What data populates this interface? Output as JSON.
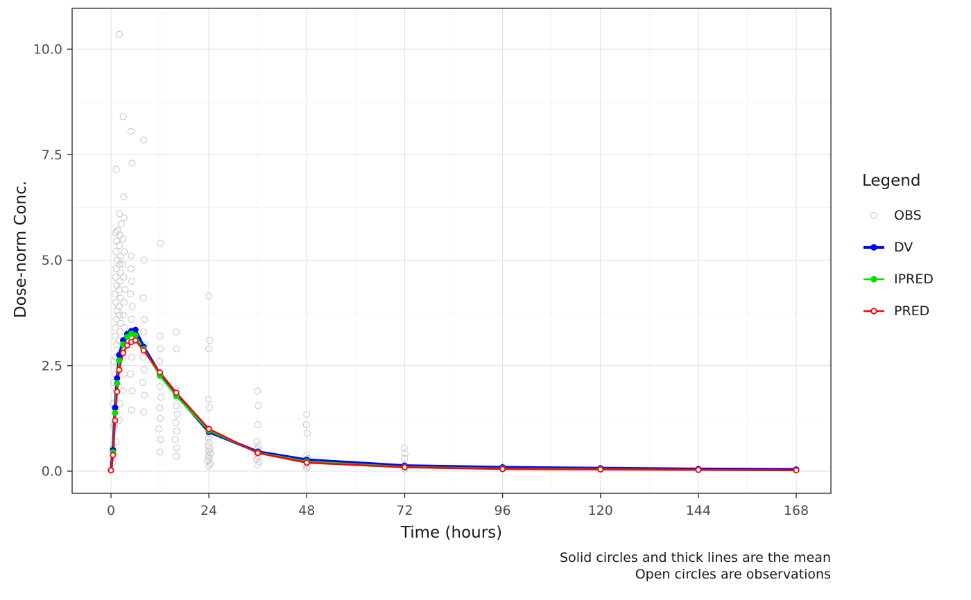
{
  "chart_data": {
    "type": "scatter",
    "title": "",
    "xlabel": "Time (hours)",
    "ylabel": "Dose-norm Conc.",
    "xticks": [
      0,
      24,
      48,
      72,
      96,
      120,
      144,
      168
    ],
    "yticks": [
      "0.0",
      "2.5",
      "5.0",
      "7.5",
      "10.0"
    ],
    "ytick_values": [
      0,
      2.5,
      5,
      7.5,
      10
    ],
    "xlim": [
      -9.4,
      176.5
    ],
    "ylim": [
      -0.53,
      10.97
    ],
    "grid": true,
    "legend_title": "Legend",
    "legend_position": "right",
    "caption": [
      "Solid circles and thick lines are the mean",
      "Open circles are observations"
    ],
    "colors": {
      "obs": "#c9c9c9",
      "dv": "#0000ff",
      "ipred": "#00e000",
      "pred": "#ff0000",
      "tick_label": "#4d4d4d",
      "grid_major": "#e4e4e4",
      "grid_minor": "#f4f4f4",
      "panel_border": "#333333"
    },
    "mean_time": [
      0,
      0.5,
      1,
      1.5,
      2,
      3,
      4,
      5,
      6,
      8,
      12,
      16,
      24,
      36,
      48,
      72,
      96,
      120,
      144,
      168
    ],
    "series": [
      {
        "name": "OBS",
        "type": "scatter",
        "marker": "open-circle",
        "color_key": "obs"
      },
      {
        "name": "DV",
        "type": "line",
        "marker": "filled-circle",
        "color_key": "dv",
        "values": [
          0.02,
          0.5,
          1.5,
          2.2,
          2.75,
          3.1,
          3.25,
          3.32,
          3.35,
          2.95,
          2.3,
          1.82,
          0.93,
          0.46,
          0.27,
          0.13,
          0.09,
          0.07,
          0.05,
          0.04
        ]
      },
      {
        "name": "IPRED",
        "type": "line",
        "marker": "filled-circle",
        "color_key": "ipred",
        "values": [
          0.02,
          0.45,
          1.38,
          2.08,
          2.62,
          3.0,
          3.18,
          3.26,
          3.22,
          2.9,
          2.26,
          1.78,
          0.96,
          0.44,
          0.23,
          0.1,
          0.06,
          0.05,
          0.03,
          0.02
        ]
      },
      {
        "name": "PRED",
        "type": "line",
        "marker": "open-circle",
        "color_key": "pred",
        "values": [
          0.02,
          0.38,
          1.2,
          1.88,
          2.4,
          2.8,
          2.98,
          3.06,
          3.1,
          2.86,
          2.34,
          1.86,
          1.0,
          0.43,
          0.2,
          0.09,
          0.05,
          0.04,
          0.03,
          0.02
        ]
      }
    ],
    "obs_points": [
      [
        0.4,
        0.2
      ],
      [
        0.5,
        0.55
      ],
      [
        0.6,
        1.05
      ],
      [
        0.5,
        1.6
      ],
      [
        0.65,
        2.1
      ],
      [
        0.7,
        2.6
      ],
      [
        1.0,
        0.35
      ],
      [
        1.2,
        0.7
      ],
      [
        0.9,
        1.1
      ],
      [
        1.1,
        1.5
      ],
      [
        1.3,
        1.9
      ],
      [
        1.0,
        2.3
      ],
      [
        1.2,
        2.7
      ],
      [
        1.4,
        3.0
      ],
      [
        1.0,
        3.2
      ],
      [
        1.1,
        3.4
      ],
      [
        1.3,
        3.6
      ],
      [
        1.5,
        3.8
      ],
      [
        1.2,
        4.0
      ],
      [
        1.0,
        4.2
      ],
      [
        1.4,
        4.4
      ],
      [
        1.1,
        4.6
      ],
      [
        1.3,
        4.8
      ],
      [
        1.5,
        5.0
      ],
      [
        1.2,
        5.2
      ],
      [
        1.4,
        5.45
      ],
      [
        1.1,
        5.65
      ],
      [
        1.6,
        5.7
      ],
      [
        1.3,
        7.15
      ],
      [
        2.0,
        1.2
      ],
      [
        2.2,
        1.6
      ],
      [
        1.9,
        2.0
      ],
      [
        2.1,
        2.4
      ],
      [
        2.3,
        2.8
      ],
      [
        2.0,
        3.1
      ],
      [
        2.2,
        3.3
      ],
      [
        2.4,
        3.5
      ],
      [
        2.1,
        3.7
      ],
      [
        1.9,
        3.9
      ],
      [
        2.3,
        4.1
      ],
      [
        2.0,
        4.3
      ],
      [
        2.2,
        4.5
      ],
      [
        2.4,
        4.7
      ],
      [
        2.1,
        4.9
      ],
      [
        2.3,
        5.1
      ],
      [
        2.0,
        5.35
      ],
      [
        2.2,
        5.6
      ],
      [
        2.5,
        5.85
      ],
      [
        2.1,
        6.1
      ],
      [
        2.0,
        10.35
      ],
      [
        3.0,
        1.9
      ],
      [
        3.2,
        2.3
      ],
      [
        2.9,
        2.7
      ],
      [
        3.1,
        3.1
      ],
      [
        3.3,
        3.4
      ],
      [
        3.0,
        3.7
      ],
      [
        3.2,
        4.0
      ],
      [
        3.4,
        4.3
      ],
      [
        3.1,
        4.6
      ],
      [
        2.9,
        4.9
      ],
      [
        3.3,
        5.2
      ],
      [
        3.0,
        5.5
      ],
      [
        3.2,
        6.0
      ],
      [
        3.1,
        6.5
      ],
      [
        3.0,
        8.4
      ],
      [
        5.0,
        1.45
      ],
      [
        5.2,
        1.9
      ],
      [
        4.8,
        2.3
      ],
      [
        5.1,
        2.7
      ],
      [
        4.9,
        3.0
      ],
      [
        5.3,
        3.3
      ],
      [
        5.0,
        3.6
      ],
      [
        5.2,
        3.9
      ],
      [
        4.8,
        4.2
      ],
      [
        5.1,
        4.5
      ],
      [
        4.9,
        4.8
      ],
      [
        5.0,
        5.1
      ],
      [
        5.2,
        7.3
      ],
      [
        4.9,
        8.05
      ],
      [
        8.0,
        1.4
      ],
      [
        8.2,
        1.8
      ],
      [
        7.8,
        2.1
      ],
      [
        8.1,
        2.4
      ],
      [
        7.9,
        2.7
      ],
      [
        8.3,
        3.0
      ],
      [
        8.0,
        3.3
      ],
      [
        8.2,
        3.6
      ],
      [
        7.9,
        4.1
      ],
      [
        8.1,
        5.0
      ],
      [
        8.0,
        7.85
      ],
      [
        12.0,
        0.45
      ],
      [
        12.2,
        0.75
      ],
      [
        11.8,
        1.0
      ],
      [
        12.1,
        1.25
      ],
      [
        11.9,
        1.5
      ],
      [
        12.3,
        1.75
      ],
      [
        12.0,
        2.0
      ],
      [
        12.2,
        2.3
      ],
      [
        11.9,
        2.6
      ],
      [
        12.1,
        2.9
      ],
      [
        12.0,
        3.2
      ],
      [
        12.1,
        5.4
      ],
      [
        16.0,
        0.35
      ],
      [
        16.2,
        0.55
      ],
      [
        15.8,
        0.75
      ],
      [
        16.1,
        0.95
      ],
      [
        15.9,
        1.15
      ],
      [
        16.3,
        1.35
      ],
      [
        16.0,
        1.55
      ],
      [
        16.2,
        1.75
      ],
      [
        15.9,
        1.95
      ],
      [
        16.1,
        2.9
      ],
      [
        16.0,
        3.3
      ],
      [
        24.0,
        0.12
      ],
      [
        24.3,
        0.18
      ],
      [
        23.7,
        0.24
      ],
      [
        24.1,
        0.3
      ],
      [
        23.9,
        0.36
      ],
      [
        24.4,
        0.42
      ],
      [
        24.0,
        0.48
      ],
      [
        24.2,
        0.54
      ],
      [
        23.8,
        0.6
      ],
      [
        24.1,
        0.68
      ],
      [
        23.9,
        0.78
      ],
      [
        24.2,
        0.88
      ],
      [
        24.0,
        1.0
      ],
      [
        24.1,
        1.5
      ],
      [
        23.9,
        1.7
      ],
      [
        24.0,
        2.9
      ],
      [
        24.2,
        3.1
      ],
      [
        24.0,
        4.15
      ],
      [
        36.0,
        0.15
      ],
      [
        36.3,
        0.22
      ],
      [
        35.7,
        0.28
      ],
      [
        36.1,
        0.34
      ],
      [
        35.9,
        0.4
      ],
      [
        36.2,
        0.46
      ],
      [
        36.0,
        0.52
      ],
      [
        36.1,
        0.6
      ],
      [
        35.8,
        0.7
      ],
      [
        36.0,
        1.1
      ],
      [
        36.1,
        1.55
      ],
      [
        35.9,
        1.9
      ],
      [
        48.0,
        0.07
      ],
      [
        48.3,
        0.11
      ],
      [
        47.7,
        0.15
      ],
      [
        48.1,
        0.19
      ],
      [
        47.9,
        0.24
      ],
      [
        48.2,
        0.3
      ],
      [
        48.0,
        0.37
      ],
      [
        48.1,
        0.9
      ],
      [
        47.9,
        1.1
      ],
      [
        48.0,
        1.35
      ],
      [
        72.0,
        0.05
      ],
      [
        72.2,
        0.09
      ],
      [
        71.8,
        0.13
      ],
      [
        72.0,
        0.3
      ],
      [
        72.1,
        0.42
      ],
      [
        71.9,
        0.55
      ],
      [
        96.0,
        0.05
      ],
      [
        96.2,
        0.1
      ],
      [
        120.0,
        0.06
      ]
    ]
  }
}
